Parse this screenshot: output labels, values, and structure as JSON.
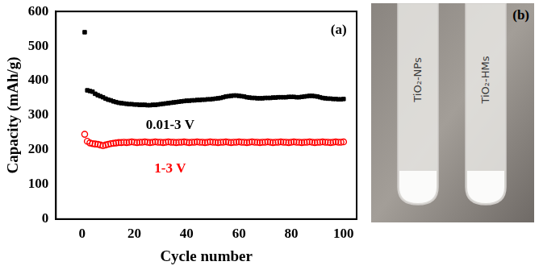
{
  "chart_data": {
    "type": "scatter",
    "x_label": "Cycle number",
    "y_label": "Capacity (mAh/g)",
    "annotations": [
      "(a)"
    ],
    "xlim": [
      -10,
      105
    ],
    "xticks": [
      0,
      20,
      40,
      60,
      80,
      100
    ],
    "ylim": [
      0,
      600
    ],
    "yticks": [
      0,
      100,
      200,
      300,
      400,
      500,
      600
    ],
    "grid": false,
    "x": [
      1,
      2,
      3,
      4,
      5,
      6,
      7,
      8,
      9,
      10,
      11,
      12,
      13,
      14,
      15,
      16,
      17,
      18,
      19,
      20,
      21,
      22,
      23,
      24,
      25,
      26,
      27,
      28,
      29,
      30,
      31,
      32,
      33,
      34,
      35,
      36,
      37,
      38,
      39,
      40,
      41,
      42,
      43,
      44,
      45,
      46,
      47,
      48,
      49,
      50,
      51,
      52,
      53,
      54,
      55,
      56,
      57,
      58,
      59,
      60,
      61,
      62,
      63,
      64,
      65,
      66,
      67,
      68,
      69,
      70,
      71,
      72,
      73,
      74,
      75,
      76,
      77,
      78,
      79,
      80,
      81,
      82,
      83,
      84,
      85,
      86,
      87,
      88,
      89,
      90,
      91,
      92,
      93,
      94,
      95,
      96,
      97,
      98,
      99,
      100
    ],
    "series": [
      {
        "name": "0.01-3 V",
        "color": "#000000",
        "marker": "square",
        "values": [
          540,
          372,
          370,
          368,
          362,
          358,
          355,
          352,
          348,
          345,
          343,
          340,
          338,
          336,
          335,
          334,
          333,
          332,
          332,
          331,
          331,
          330,
          330,
          330,
          329,
          329,
          330,
          330,
          331,
          332,
          333,
          334,
          335,
          336,
          337,
          338,
          339,
          340,
          341,
          342,
          342,
          343,
          343,
          344,
          344,
          345,
          345,
          346,
          346,
          347,
          348,
          349,
          350,
          352,
          354,
          355,
          356,
          357,
          357,
          356,
          355,
          354,
          352,
          351,
          350,
          350,
          349,
          349,
          349,
          350,
          350,
          350,
          351,
          351,
          352,
          352,
          352,
          352,
          353,
          353,
          353,
          352,
          352,
          353,
          354,
          355,
          356,
          356,
          355,
          354,
          352,
          350,
          349,
          348,
          348,
          347,
          347,
          346,
          346,
          347
        ]
      },
      {
        "name": "1-3 V",
        "color": "#ff0000",
        "marker": "open_circle",
        "values": [
          245,
          225,
          220,
          218,
          217,
          216,
          214,
          212,
          214,
          216,
          218,
          219,
          220,
          221,
          221,
          222,
          221,
          222,
          223,
          222,
          221,
          222,
          222,
          223,
          222,
          221,
          222,
          223,
          222,
          222,
          221,
          222,
          223,
          222,
          222,
          221,
          222,
          222,
          223,
          222,
          221,
          222,
          222,
          223,
          222,
          222,
          221,
          222,
          223,
          222,
          222,
          221,
          222,
          222,
          223,
          222,
          221,
          222,
          222,
          223,
          222,
          222,
          221,
          222,
          223,
          222,
          222,
          221,
          222,
          222,
          223,
          222,
          221,
          222,
          222,
          223,
          222,
          222,
          221,
          222,
          223,
          222,
          222,
          221,
          222,
          222,
          223,
          222,
          221,
          222,
          222,
          223,
          222,
          222,
          221,
          222,
          223,
          222,
          222,
          223
        ]
      }
    ]
  },
  "photo": {
    "label": "(b)",
    "tubes": [
      "TiO₂-NPs",
      "TiO₂-HMs"
    ]
  }
}
